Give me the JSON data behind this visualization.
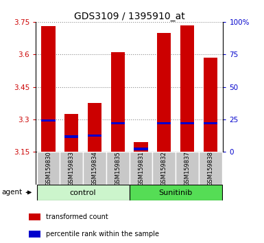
{
  "title": "GDS3109 / 1395910_at",
  "samples": [
    "GSM159830",
    "GSM159833",
    "GSM159834",
    "GSM159835",
    "GSM159831",
    "GSM159832",
    "GSM159837",
    "GSM159838"
  ],
  "red_bar_tops": [
    3.73,
    3.325,
    3.375,
    3.61,
    3.195,
    3.7,
    3.735,
    3.585
  ],
  "blue_markers": [
    3.295,
    3.22,
    3.225,
    3.283,
    3.163,
    3.283,
    3.283,
    3.283
  ],
  "y_min": 3.15,
  "y_max": 3.75,
  "y_ticks": [
    3.15,
    3.3,
    3.45,
    3.6,
    3.75
  ],
  "y_tick_labels": [
    "3.15",
    "3.3",
    "3.45",
    "3.6",
    "3.75"
  ],
  "right_y_ticks": [
    3.15,
    3.3,
    3.45,
    3.6,
    3.75
  ],
  "right_y_labels": [
    "0",
    "25",
    "50",
    "75",
    "100%"
  ],
  "groups": [
    {
      "label": "control",
      "indices": [
        0,
        1,
        2,
        3
      ],
      "color": "#ccf5cc"
    },
    {
      "label": "Sunitinib",
      "indices": [
        4,
        5,
        6,
        7
      ],
      "color": "#55dd55"
    }
  ],
  "bar_color": "#cc0000",
  "blue_color": "#0000cc",
  "bar_width": 0.6,
  "grid_color": "#888888",
  "bg_xtick": "#c8c8c8",
  "title_fontsize": 10,
  "tick_fontsize": 7.5,
  "legend": [
    {
      "color": "#cc0000",
      "label": "transformed count"
    },
    {
      "color": "#0000cc",
      "label": "percentile rank within the sample"
    }
  ]
}
